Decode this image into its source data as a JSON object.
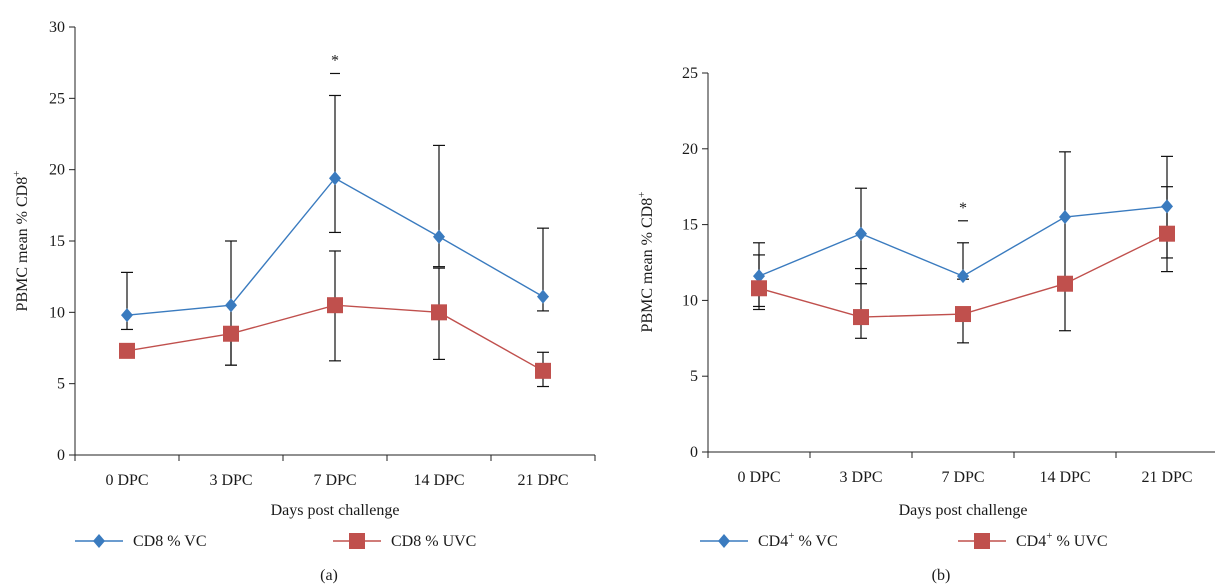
{
  "chart_data": [
    {
      "panel_label": "(a)",
      "type": "line",
      "categories": [
        "0 DPC",
        "3 DPC",
        "7 DPC",
        "14 DPC",
        "21 DPC"
      ],
      "xlabel": "Days post challenge",
      "ylabel": "PBMC mean % CD8",
      "ylabel_superscript": "+",
      "ylim": [
        0,
        30
      ],
      "yticks": [
        0,
        5,
        10,
        15,
        20,
        25,
        30
      ],
      "grid": false,
      "legend_position": "bottom",
      "significance": [
        {
          "category": "7 DPC",
          "text": "*"
        }
      ],
      "series": [
        {
          "name": "CD8 % VC",
          "name_base": "CD8",
          "name_sup": "",
          "name_rest": " % VC",
          "color": "#3a7bbf",
          "marker": "diamond",
          "values": [
            9.8,
            10.5,
            19.4,
            15.3,
            11.1
          ],
          "error_upper": [
            12.8,
            15.0,
            25.2,
            21.7,
            15.9
          ],
          "error_lower": [
            8.8,
            6.3,
            15.6,
            13.2,
            10.1
          ]
        },
        {
          "name": "CD8 % UVC",
          "name_base": "CD8",
          "name_sup": "",
          "name_rest": " % UVC",
          "color": "#c0504d",
          "marker": "square",
          "values": [
            7.3,
            8.5,
            10.5,
            10.0,
            5.9
          ],
          "error_upper": [
            null,
            null,
            14.3,
            13.1,
            7.2
          ],
          "error_lower": [
            null,
            6.3,
            6.6,
            6.7,
            4.8
          ]
        }
      ]
    },
    {
      "panel_label": "(b)",
      "type": "line",
      "categories": [
        "0 DPC",
        "3 DPC",
        "7 DPC",
        "14 DPC",
        "21 DPC"
      ],
      "xlabel": "Days post challenge",
      "ylabel": "PBMC mean % CD8",
      "ylabel_superscript": "+",
      "ylim": [
        0,
        25
      ],
      "yticks": [
        0,
        5,
        10,
        15,
        20,
        25
      ],
      "grid": false,
      "legend_position": "bottom",
      "significance": [
        {
          "category": "7 DPC",
          "text": "*"
        }
      ],
      "series": [
        {
          "name": "CD4+ % VC",
          "name_base": "CD4",
          "name_sup": "+",
          "name_rest": " % VC",
          "color": "#3a7bbf",
          "marker": "diamond",
          "values": [
            11.6,
            14.4,
            11.6,
            15.5,
            16.2
          ],
          "error_upper": [
            13.8,
            17.4,
            13.8,
            19.8,
            19.5
          ],
          "error_lower": [
            9.4,
            11.1,
            11.4,
            11.1,
            12.8
          ]
        },
        {
          "name": "CD4+ % UVC",
          "name_base": "CD4",
          "name_sup": "+",
          "name_rest": " % UVC",
          "color": "#c0504d",
          "marker": "square",
          "values": [
            10.8,
            8.9,
            9.1,
            11.1,
            14.4
          ],
          "error_upper": [
            13.0,
            12.1,
            null,
            null,
            17.5
          ],
          "error_lower": [
            9.6,
            7.5,
            7.2,
            8.0,
            11.9
          ]
        }
      ]
    }
  ]
}
